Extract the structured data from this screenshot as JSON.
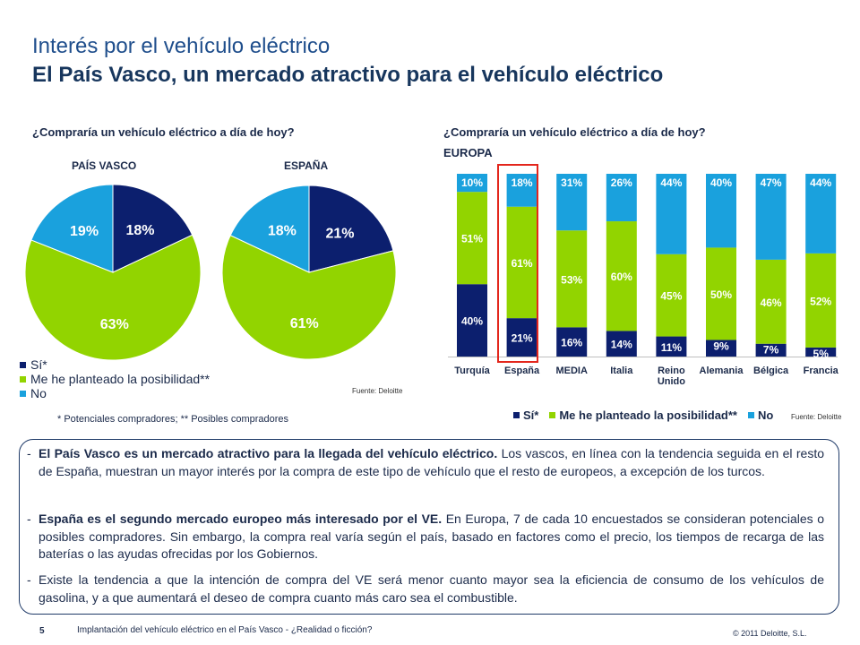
{
  "title": "Interés por el vehículo eléctrico",
  "subtitle": "El País Vasco, un mercado atractivo para el vehículo eléctrico",
  "colors": {
    "si": "#0c1f6e",
    "planteado": "#92d400",
    "no": "#1aa1dd",
    "highlight": "#e3261c"
  },
  "left": {
    "question": "¿Compraría un vehículo eléctrico a día de hoy?",
    "legend": [
      "Sí*",
      "Me he planteado la posibilidad**",
      "No"
    ],
    "source": "Fuente: Deloitte",
    "note": "* Potenciales compradores; ** Posibles compradores"
  },
  "right": {
    "question": "¿Compraría un vehículo eléctrico a día de hoy?",
    "region": "EUROPA",
    "legend": [
      "Sí*",
      "Me he planteado la posibilidad**",
      "No"
    ],
    "source": "Fuente: Deloitte"
  },
  "chart_data": [
    {
      "type": "pie",
      "title": "PAÍS VASCO",
      "categories": [
        "Sí*",
        "Me he planteado la posibilidad**",
        "No"
      ],
      "values": [
        18,
        63,
        19
      ],
      "labels": [
        "18%",
        "63%",
        "19%"
      ]
    },
    {
      "type": "pie",
      "title": "ESPAÑA",
      "categories": [
        "Sí*",
        "Me he planteado la posibilidad**",
        "No"
      ],
      "values": [
        21,
        61,
        18
      ],
      "labels": [
        "21%",
        "61%",
        "18%"
      ]
    },
    {
      "type": "bar",
      "stacked": true,
      "categories": [
        "Turquía",
        "España",
        "MEDIA",
        "Italia",
        "Reino Unido",
        "Alemania",
        "Bélgica",
        "Francia"
      ],
      "series": [
        {
          "name": "Sí*",
          "values": [
            40,
            21,
            16,
            14,
            11,
            9,
            7,
            5
          ]
        },
        {
          "name": "Me he planteado la posibilidad**",
          "values": [
            51,
            61,
            53,
            60,
            45,
            50,
            46,
            52
          ]
        },
        {
          "name": "No",
          "values": [
            10,
            18,
            31,
            26,
            44,
            40,
            47,
            44
          ]
        }
      ],
      "ylim": [
        0,
        100
      ],
      "highlight": "España"
    }
  ],
  "body": {
    "p1_bold": "El País Vasco es un mercado atractivo para la llegada del vehículo eléctrico.",
    "p1_rest": " Los vascos, en línea con la tendencia seguida en el resto de España, muestran un mayor interés por la compra de este tipo de vehículo que el resto de europeos, a excepción de los turcos.",
    "p2_bold": "España es el segundo mercado europeo más interesado por el VE.",
    "p2_rest": " En Europa, 7 de cada 10 encuestados se consideran potenciales o posibles compradores. Sin embargo, la compra real varía según el país, basado en factores como el precio, los tiempos de recarga de las baterías o las ayudas ofrecidas por los Gobiernos.",
    "p3": "Existe la tendencia a que la intención de compra del VE será menor cuanto mayor sea la eficiencia de consumo de los vehículos de gasolina, y a que aumentará el deseo de compra cuanto más caro sea el combustible."
  },
  "footer": {
    "page": "5",
    "text": "Implantación del vehículo eléctrico en el País Vasco - ¿Realidad o ficción?",
    "copyright": "© 2011 Deloitte, S.L."
  }
}
